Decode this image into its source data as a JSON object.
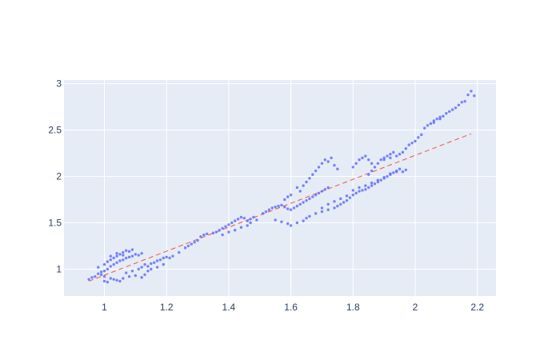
{
  "chart_data": {
    "type": "scatter",
    "title": "",
    "xlabel": "",
    "ylabel": "",
    "xlim": [
      0.87,
      2.26
    ],
    "ylim": [
      0.71,
      3.04
    ],
    "x_ticks": [
      1,
      1.2,
      1.4,
      1.6,
      1.8,
      2,
      2.2
    ],
    "x_tick_labels": [
      "1",
      "1.2",
      "1.4",
      "1.6",
      "1.8",
      "2",
      "2.2"
    ],
    "y_ticks": [
      1,
      1.5,
      2,
      2.5,
      3
    ],
    "y_tick_labels": [
      "1",
      "1.5",
      "2",
      "2.5",
      "3"
    ],
    "grid": true,
    "legend": "none",
    "colors": {
      "plot_background": "#e5ecf6",
      "grid": "#ffffff",
      "points": "#636efa",
      "trend_line": "#ef553b"
    },
    "series": [
      {
        "type": "scatter",
        "points": [
          [
            0.95,
            0.89
          ],
          [
            0.96,
            0.91
          ],
          [
            0.97,
            0.92
          ],
          [
            0.98,
            0.95
          ],
          [
            0.99,
            0.97
          ],
          [
            1.0,
            0.98
          ],
          [
            1.01,
            1.0
          ],
          [
            1.02,
            1.03
          ],
          [
            1.03,
            1.05
          ],
          [
            1.04,
            1.07
          ],
          [
            1.05,
            1.09
          ],
          [
            1.06,
            1.1
          ],
          [
            1.07,
            1.12
          ],
          [
            1.08,
            1.13
          ],
          [
            1.09,
            1.14
          ],
          [
            1.1,
            1.16
          ],
          [
            1.11,
            1.15
          ],
          [
            1.12,
            1.17
          ],
          [
            0.98,
            1.02
          ],
          [
            1.0,
            1.05
          ],
          [
            1.01,
            1.08
          ],
          [
            1.02,
            1.1
          ],
          [
            1.03,
            1.12
          ],
          [
            1.04,
            1.14
          ],
          [
            1.05,
            1.16
          ],
          [
            1.06,
            1.18
          ],
          [
            1.07,
            1.2
          ],
          [
            1.08,
            1.19
          ],
          [
            1.09,
            1.21
          ],
          [
            1.06,
            1.15
          ],
          [
            1.04,
            1.17
          ],
          [
            1.02,
            1.14
          ],
          [
            0.99,
            0.94
          ],
          [
            1.0,
            0.92
          ],
          [
            1.02,
            0.9
          ],
          [
            1.04,
            0.88
          ],
          [
            1.05,
            0.87
          ],
          [
            1.06,
            0.9
          ],
          [
            1.08,
            0.92
          ],
          [
            1.1,
            0.93
          ],
          [
            1.12,
            0.91
          ],
          [
            1.13,
            0.94
          ],
          [
            1.0,
            0.87
          ],
          [
            1.01,
            0.86
          ],
          [
            1.03,
            0.89
          ],
          [
            1.07,
            0.96
          ],
          [
            1.09,
            0.98
          ],
          [
            1.11,
            1.0
          ],
          [
            1.12,
            1.02
          ],
          [
            1.13,
            1.05
          ],
          [
            1.14,
            1.03
          ],
          [
            1.15,
            1.06
          ],
          [
            1.16,
            1.07
          ],
          [
            1.17,
            1.09
          ],
          [
            1.18,
            1.1
          ],
          [
            1.19,
            1.12
          ],
          [
            1.2,
            1.13
          ],
          [
            1.21,
            1.12
          ],
          [
            1.22,
            1.14
          ],
          [
            1.14,
            0.98
          ],
          [
            1.15,
            1.0
          ],
          [
            1.17,
            1.02
          ],
          [
            1.19,
            1.05
          ],
          [
            1.24,
            1.18
          ],
          [
            1.26,
            1.23
          ],
          [
            1.27,
            1.25
          ],
          [
            1.28,
            1.27
          ],
          [
            1.29,
            1.29
          ],
          [
            1.3,
            1.31
          ],
          [
            1.31,
            1.35
          ],
          [
            1.32,
            1.37
          ],
          [
            1.33,
            1.38
          ],
          [
            1.35,
            1.39
          ],
          [
            1.36,
            1.4
          ],
          [
            1.37,
            1.42
          ],
          [
            1.38,
            1.44
          ],
          [
            1.39,
            1.46
          ],
          [
            1.4,
            1.48
          ],
          [
            1.41,
            1.5
          ],
          [
            1.42,
            1.52
          ],
          [
            1.43,
            1.54
          ],
          [
            1.44,
            1.56
          ],
          [
            1.45,
            1.55
          ],
          [
            1.46,
            1.52
          ],
          [
            1.47,
            1.54
          ],
          [
            1.48,
            1.56
          ],
          [
            1.38,
            1.37
          ],
          [
            1.4,
            1.4
          ],
          [
            1.42,
            1.42
          ],
          [
            1.44,
            1.45
          ],
          [
            1.46,
            1.47
          ],
          [
            1.47,
            1.5
          ],
          [
            1.49,
            1.53
          ],
          [
            1.51,
            1.6
          ],
          [
            1.52,
            1.62
          ],
          [
            1.53,
            1.64
          ],
          [
            1.54,
            1.66
          ],
          [
            1.55,
            1.67
          ],
          [
            1.56,
            1.68
          ],
          [
            1.57,
            1.69
          ],
          [
            1.58,
            1.67
          ],
          [
            1.59,
            1.65
          ],
          [
            1.6,
            1.64
          ],
          [
            1.61,
            1.66
          ],
          [
            1.62,
            1.68
          ],
          [
            1.63,
            1.7
          ],
          [
            1.64,
            1.72
          ],
          [
            1.65,
            1.74
          ],
          [
            1.66,
            1.76
          ],
          [
            1.67,
            1.78
          ],
          [
            1.68,
            1.8
          ],
          [
            1.69,
            1.82
          ],
          [
            1.7,
            1.84
          ],
          [
            1.71,
            1.86
          ],
          [
            1.72,
            1.88
          ],
          [
            1.55,
            1.53
          ],
          [
            1.57,
            1.51
          ],
          [
            1.59,
            1.49
          ],
          [
            1.6,
            1.47
          ],
          [
            1.62,
            1.5
          ],
          [
            1.64,
            1.52
          ],
          [
            1.65,
            1.55
          ],
          [
            1.66,
            1.57
          ],
          [
            1.68,
            1.6
          ],
          [
            1.7,
            1.62
          ],
          [
            1.72,
            1.64
          ],
          [
            1.74,
            1.66
          ],
          [
            1.75,
            1.68
          ],
          [
            1.76,
            1.7
          ],
          [
            1.77,
            1.72
          ],
          [
            1.78,
            1.74
          ],
          [
            1.79,
            1.77
          ],
          [
            1.8,
            1.8
          ],
          [
            1.81,
            1.82
          ],
          [
            1.82,
            1.84
          ],
          [
            1.83,
            1.85
          ],
          [
            1.84,
            1.86
          ],
          [
            1.85,
            1.88
          ],
          [
            1.86,
            1.9
          ],
          [
            1.87,
            1.92
          ],
          [
            1.88,
            1.94
          ],
          [
            1.89,
            1.96
          ],
          [
            1.9,
            1.98
          ],
          [
            1.91,
            2.0
          ],
          [
            1.92,
            2.02
          ],
          [
            1.93,
            2.04
          ],
          [
            1.94,
            2.06
          ],
          [
            1.95,
            2.08
          ],
          [
            1.96,
            2.05
          ],
          [
            1.97,
            2.07
          ],
          [
            1.7,
            1.66
          ],
          [
            1.72,
            1.7
          ],
          [
            1.74,
            1.73
          ],
          [
            1.76,
            1.76
          ],
          [
            1.78,
            1.79
          ],
          [
            1.8,
            1.85
          ],
          [
            1.82,
            1.88
          ],
          [
            1.84,
            1.9
          ],
          [
            1.86,
            1.93
          ],
          [
            1.88,
            1.96
          ],
          [
            1.9,
            1.99
          ],
          [
            1.92,
            2.03
          ],
          [
            1.94,
            2.05
          ],
          [
            1.85,
            2.02
          ],
          [
            1.86,
            2.06
          ],
          [
            1.87,
            2.1
          ],
          [
            1.88,
            2.14
          ],
          [
            1.89,
            2.18
          ],
          [
            1.9,
            2.2
          ],
          [
            1.91,
            2.22
          ],
          [
            1.92,
            2.24
          ],
          [
            1.93,
            2.26
          ],
          [
            1.8,
            2.1
          ],
          [
            1.81,
            2.14
          ],
          [
            1.82,
            2.18
          ],
          [
            1.83,
            2.2
          ],
          [
            1.84,
            2.22
          ],
          [
            1.85,
            2.18
          ],
          [
            1.86,
            2.14
          ],
          [
            1.9,
            2.18
          ],
          [
            1.92,
            2.2
          ],
          [
            1.94,
            2.22
          ],
          [
            1.95,
            2.24
          ],
          [
            1.96,
            2.26
          ],
          [
            1.97,
            2.3
          ],
          [
            1.98,
            2.34
          ],
          [
            1.99,
            2.36
          ],
          [
            2.0,
            2.38
          ],
          [
            2.01,
            2.42
          ],
          [
            2.02,
            2.45
          ],
          [
            1.67,
            2.02
          ],
          [
            1.68,
            2.06
          ],
          [
            1.69,
            2.1
          ],
          [
            1.7,
            2.14
          ],
          [
            1.71,
            2.18
          ],
          [
            1.72,
            2.16
          ],
          [
            1.73,
            2.2
          ],
          [
            1.74,
            2.12
          ],
          [
            1.75,
            2.08
          ],
          [
            1.66,
            1.98
          ],
          [
            1.62,
            1.88
          ],
          [
            1.63,
            1.84
          ],
          [
            1.64,
            1.9
          ],
          [
            1.65,
            1.94
          ],
          [
            1.58,
            1.75
          ],
          [
            1.59,
            1.78
          ],
          [
            1.6,
            1.8
          ],
          [
            2.03,
            2.52
          ],
          [
            2.04,
            2.55
          ],
          [
            2.05,
            2.57
          ],
          [
            2.06,
            2.6
          ],
          [
            2.07,
            2.62
          ],
          [
            2.08,
            2.64
          ],
          [
            2.09,
            2.65
          ],
          [
            2.1,
            2.68
          ],
          [
            2.11,
            2.7
          ],
          [
            2.12,
            2.72
          ],
          [
            2.13,
            2.74
          ],
          [
            2.14,
            2.77
          ],
          [
            2.15,
            2.8
          ],
          [
            2.16,
            2.81
          ],
          [
            2.17,
            2.88
          ],
          [
            2.18,
            2.92
          ],
          [
            2.19,
            2.87
          ],
          [
            2.06,
            2.58
          ],
          [
            2.08,
            2.62
          ]
        ]
      },
      {
        "type": "line",
        "style": "dashed",
        "points": [
          [
            0.95,
            0.87
          ],
          [
            2.18,
            2.46
          ]
        ]
      }
    ]
  }
}
